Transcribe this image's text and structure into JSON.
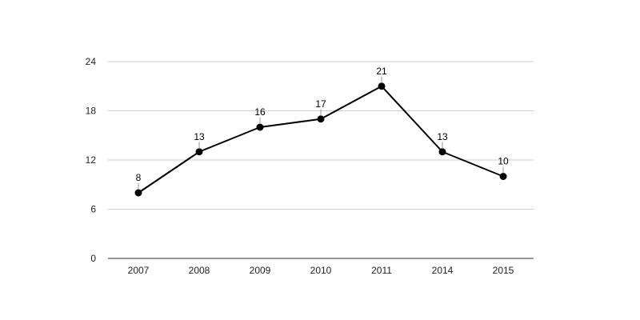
{
  "chart_data": {
    "type": "line",
    "categories": [
      "2007",
      "2008",
      "2009",
      "2010",
      "2011",
      "2014",
      "2015"
    ],
    "series": [
      {
        "values": [
          8,
          13,
          16,
          17,
          21,
          13,
          10
        ]
      }
    ],
    "data_labels": [
      "8",
      "13",
      "16",
      "17",
      "21",
      "13",
      "10"
    ],
    "y_ticks": [
      "0",
      "6",
      "12",
      "18",
      "24"
    ],
    "ylim": [
      0,
      24
    ],
    "grid": true,
    "legend": "none",
    "colors": {
      "line": "#000000",
      "marker": "#000000",
      "grid": "#cccccc",
      "axis": "#333333",
      "label_leader": "#999999"
    }
  }
}
